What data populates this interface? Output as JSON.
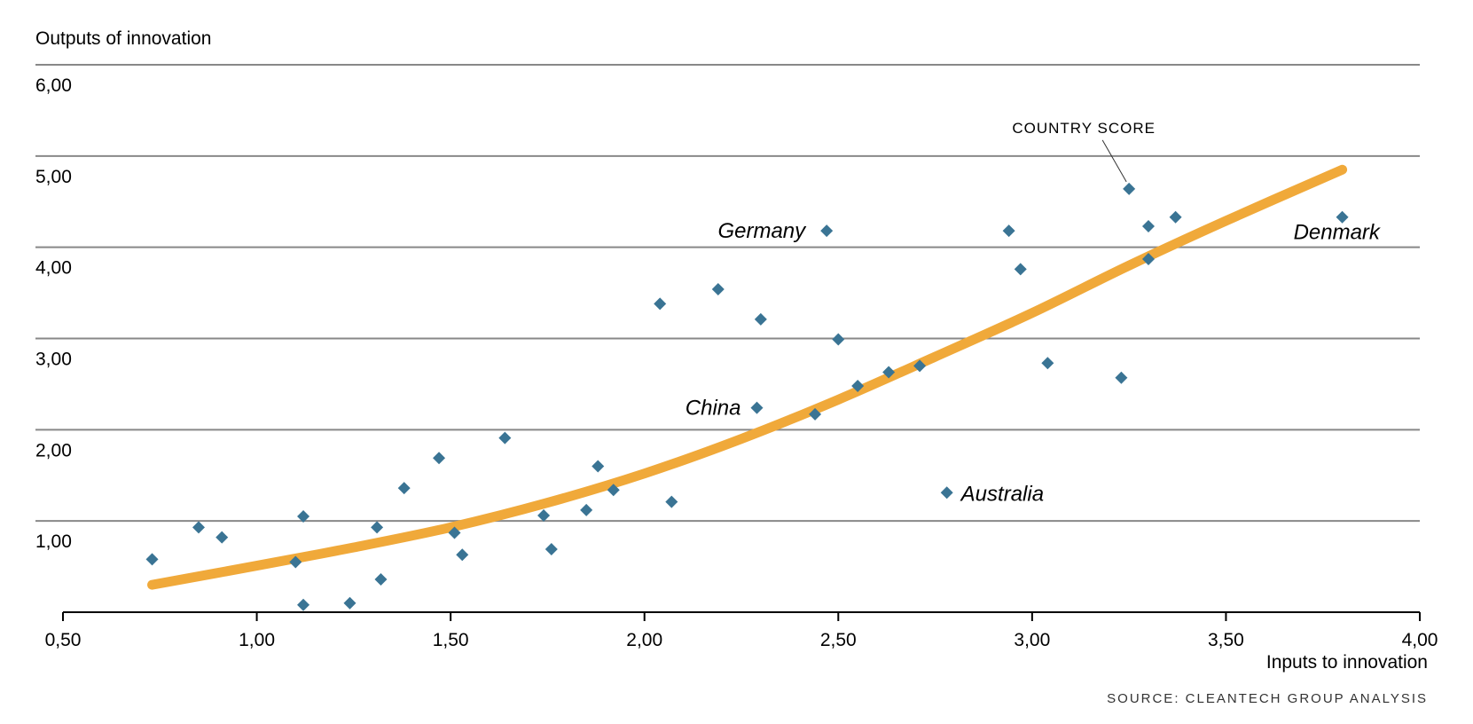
{
  "chart_data": {
    "type": "scatter",
    "ylabel": "Outputs of innovation",
    "xlabel": "Inputs to innovation",
    "source": "SOURCE: CLEANTECH GROUP ANALYSIS",
    "annotation": "COUNTRY SCORE",
    "xlim": [
      0.5,
      4.0
    ],
    "ylim": [
      0.0,
      6.0
    ],
    "x_ticks": [
      0.5,
      1.0,
      1.5,
      2.0,
      2.5,
      3.0,
      3.5,
      4.0
    ],
    "x_tick_labels": [
      "0,50",
      "1,00",
      "1,50",
      "2,00",
      "2,50",
      "3,00",
      "3,50",
      "4,00"
    ],
    "y_ticks": [
      1,
      2,
      3,
      4,
      5,
      6
    ],
    "y_tick_labels": [
      "1,00",
      "2,00",
      "3,00",
      "4,00",
      "5,00",
      "6,00"
    ],
    "grid": "horizontal",
    "colors": {
      "points": "#3a7494",
      "trend": "#f0a93a",
      "grid": "#888888"
    },
    "points": [
      {
        "x": 0.73,
        "y": 0.58
      },
      {
        "x": 0.85,
        "y": 0.93
      },
      {
        "x": 0.91,
        "y": 0.82
      },
      {
        "x": 1.1,
        "y": 0.55
      },
      {
        "x": 1.12,
        "y": 1.05
      },
      {
        "x": 1.12,
        "y": 0.08
      },
      {
        "x": 1.24,
        "y": 0.1
      },
      {
        "x": 1.31,
        "y": 0.93
      },
      {
        "x": 1.32,
        "y": 0.36
      },
      {
        "x": 1.38,
        "y": 1.36
      },
      {
        "x": 1.47,
        "y": 1.69
      },
      {
        "x": 1.51,
        "y": 0.87
      },
      {
        "x": 1.53,
        "y": 0.63
      },
      {
        "x": 1.64,
        "y": 1.91
      },
      {
        "x": 1.74,
        "y": 1.06
      },
      {
        "x": 1.76,
        "y": 0.69
      },
      {
        "x": 1.85,
        "y": 1.12
      },
      {
        "x": 1.88,
        "y": 1.6
      },
      {
        "x": 1.92,
        "y": 1.34
      },
      {
        "x": 2.04,
        "y": 3.38
      },
      {
        "x": 2.07,
        "y": 1.21
      },
      {
        "x": 2.19,
        "y": 3.54
      },
      {
        "x": 2.29,
        "y": 2.24,
        "label": "China"
      },
      {
        "x": 2.3,
        "y": 3.21
      },
      {
        "x": 2.44,
        "y": 2.17
      },
      {
        "x": 2.47,
        "y": 4.18,
        "label": "Germany"
      },
      {
        "x": 2.5,
        "y": 2.99
      },
      {
        "x": 2.55,
        "y": 2.48
      },
      {
        "x": 2.63,
        "y": 2.63
      },
      {
        "x": 2.71,
        "y": 2.7
      },
      {
        "x": 2.78,
        "y": 1.31,
        "label": "Australia"
      },
      {
        "x": 2.94,
        "y": 4.18
      },
      {
        "x": 2.97,
        "y": 3.76
      },
      {
        "x": 3.04,
        "y": 2.73
      },
      {
        "x": 3.23,
        "y": 2.57
      },
      {
        "x": 3.25,
        "y": 4.64,
        "annotated": true
      },
      {
        "x": 3.3,
        "y": 4.23
      },
      {
        "x": 3.3,
        "y": 3.87
      },
      {
        "x": 3.37,
        "y": 4.33
      },
      {
        "x": 3.8,
        "y": 4.33,
        "label": "Denmark"
      }
    ],
    "trendline": {
      "x": [
        0.73,
        1.0,
        1.25,
        1.5,
        1.75,
        2.0,
        2.25,
        2.5,
        2.75,
        3.0,
        3.25,
        3.5,
        3.8
      ],
      "y": [
        0.3,
        0.51,
        0.71,
        0.93,
        1.2,
        1.52,
        1.9,
        2.33,
        2.8,
        3.28,
        3.8,
        4.29,
        4.85
      ]
    }
  }
}
